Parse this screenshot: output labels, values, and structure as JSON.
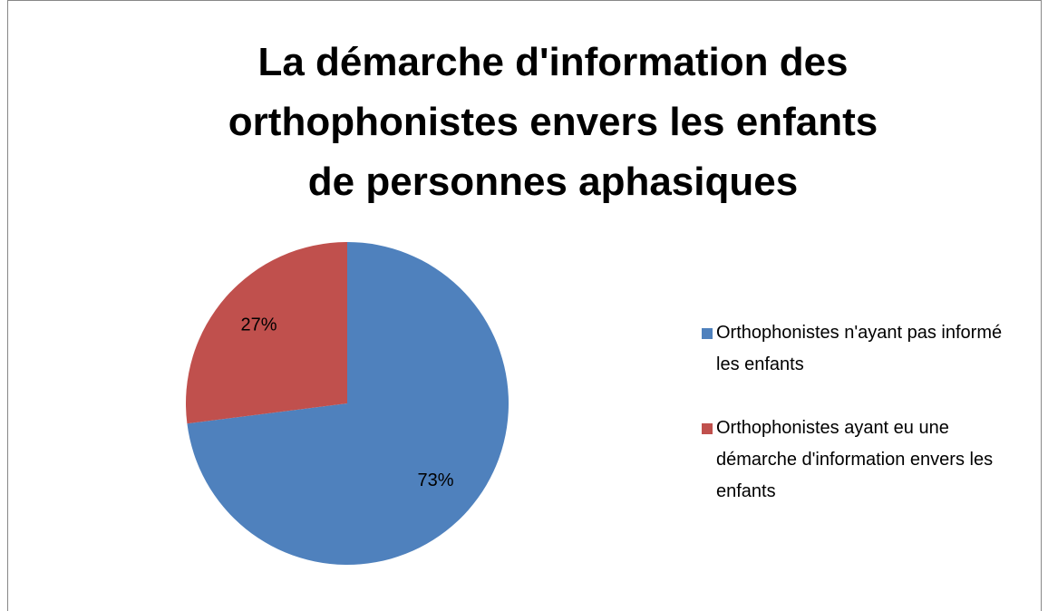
{
  "chart_data": {
    "type": "pie",
    "title": "La démarche d'information des orthophonistes envers les enfants de personnes aphasiques",
    "categories": [
      "Orthophonistes n'ayant pas informé les enfants",
      "Orthophonistes ayant eu une démarche d'information envers les enfants"
    ],
    "values": [
      73,
      27
    ],
    "value_labels": [
      "73%",
      "27%"
    ],
    "colors": [
      "#4f81bd",
      "#c0504d"
    ],
    "legend": "right"
  }
}
